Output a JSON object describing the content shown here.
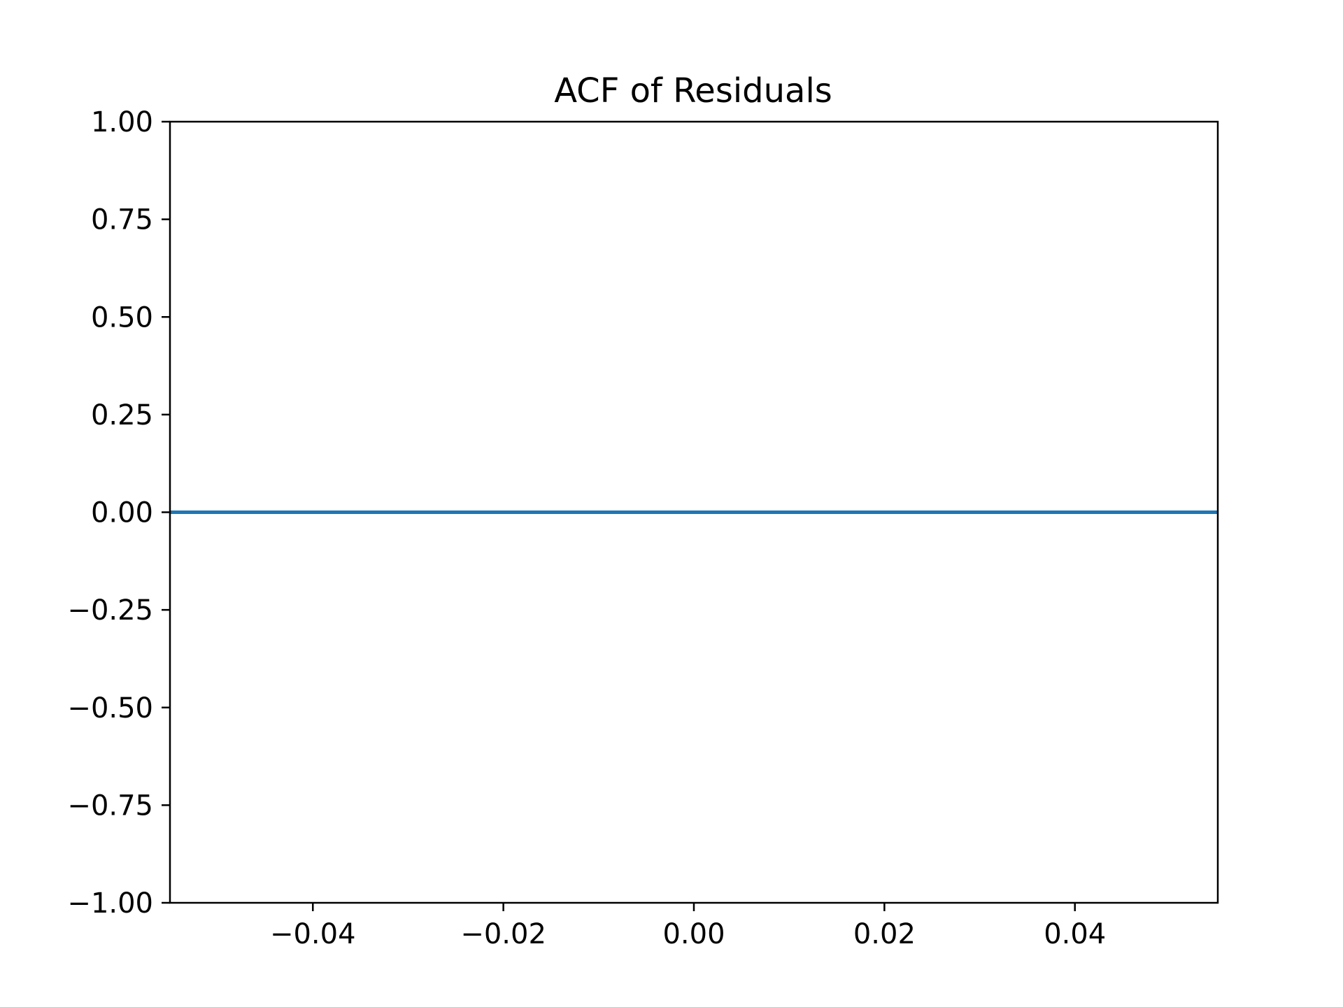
{
  "chart_data": {
    "type": "line",
    "title": "ACF of Residuals",
    "xlabel": "",
    "ylabel": "",
    "xlim": [
      -0.055,
      0.055
    ],
    "ylim": [
      -1.0,
      1.0
    ],
    "x_ticks": [
      -0.04,
      -0.02,
      0.0,
      0.02,
      0.04
    ],
    "x_tick_labels": [
      "−0.04",
      "−0.02",
      "0.00",
      "0.02",
      "0.04"
    ],
    "y_ticks": [
      1.0,
      0.75,
      0.5,
      0.25,
      0.0,
      -0.25,
      -0.5,
      -0.75,
      -1.0
    ],
    "y_tick_labels": [
      "1.00",
      "0.75",
      "0.50",
      "0.25",
      "0.00",
      "−0.25",
      "−0.50",
      "−0.75",
      "−1.00"
    ],
    "grid": false,
    "series": [
      {
        "x": [
          -0.055,
          0.055
        ],
        "y": [
          0.0,
          0.0
        ],
        "color": "#1f77b4"
      }
    ]
  }
}
